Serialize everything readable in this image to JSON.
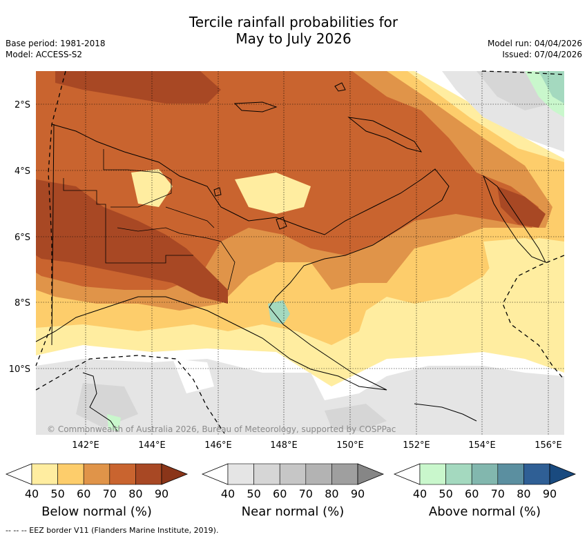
{
  "header": {
    "title_line1": "Tercile rainfall probabilities for",
    "title_line2": "May to July 2026",
    "base_period": "Base period: 1981-2018",
    "model": "Model: ACCESS-S2",
    "model_run": "Model run: 04/04/2026",
    "issued": "Issued: 07/04/2026"
  },
  "map": {
    "lat_labels": [
      "2°S",
      "4°S",
      "6°S",
      "8°S",
      "10°S"
    ],
    "lon_labels": [
      "142°E",
      "144°E",
      "146°E",
      "148°E",
      "150°E",
      "152°E",
      "154°E",
      "156°E"
    ],
    "copyright": "© Commonwealth of Australia 2026, Bureau of Meteorology, supported by COSPPac"
  },
  "colorbars": [
    {
      "title": "Below normal (%)",
      "ticks": [
        "40",
        "50",
        "60",
        "70",
        "80",
        "90"
      ],
      "colors": [
        "#ffffff",
        "#ffeda0",
        "#fdcd6b",
        "#e09449",
        "#c9642f",
        "#a84824",
        "#8a3519"
      ]
    },
    {
      "title": "Near normal (%)",
      "ticks": [
        "40",
        "50",
        "60",
        "70",
        "80",
        "90"
      ],
      "colors": [
        "#ffffff",
        "#e5e5e5",
        "#d6d6d6",
        "#c6c6c6",
        "#b3b3b3",
        "#9f9f9f",
        "#868686"
      ]
    },
    {
      "title": "Above normal (%)",
      "ticks": [
        "40",
        "50",
        "60",
        "70",
        "80",
        "90"
      ],
      "colors": [
        "#ffffff",
        "#c9f7cc",
        "#a4d9bf",
        "#82b7ae",
        "#5b8fa0",
        "#2f5f95",
        "#194a7f"
      ]
    }
  ],
  "footnote": "--  --  -- EEZ border V11 (Flanders Marine Institute, 2019)."
}
